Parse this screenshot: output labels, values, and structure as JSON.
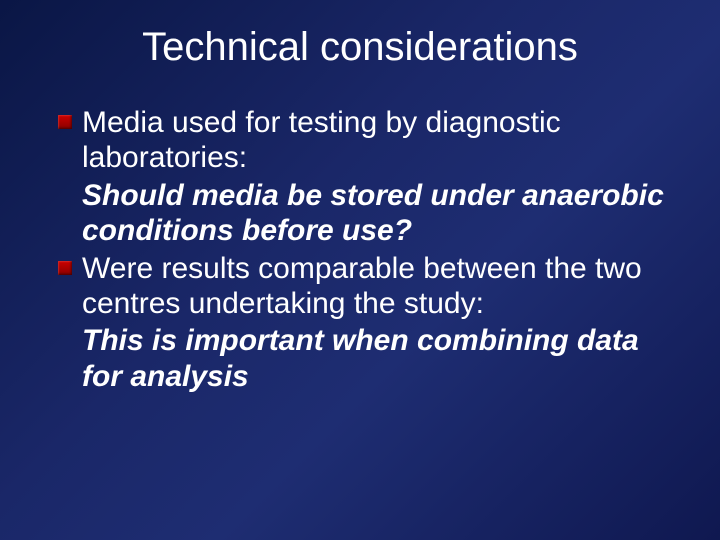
{
  "slide": {
    "title": "Technical considerations",
    "background_gradient_start": "#0a1645",
    "background_gradient_mid": "#1e2d72",
    "background_gradient_end": "#0f1850",
    "title_color": "#ffffff",
    "title_fontsize": 40,
    "body_fontsize": 30,
    "body_color": "#ffffff",
    "bullet_color": "#8b0000",
    "bullet_size": 14,
    "items": [
      {
        "type": "bullet",
        "text": "Media used for testing by diagnostic laboratories:"
      },
      {
        "type": "emphasis",
        "text": "Should media be stored under anaerobic conditions before use?"
      },
      {
        "type": "bullet",
        "text": "Were results comparable between the two centres undertaking the study:"
      },
      {
        "type": "emphasis",
        "text": "This is important when combining data for analysis"
      }
    ]
  }
}
